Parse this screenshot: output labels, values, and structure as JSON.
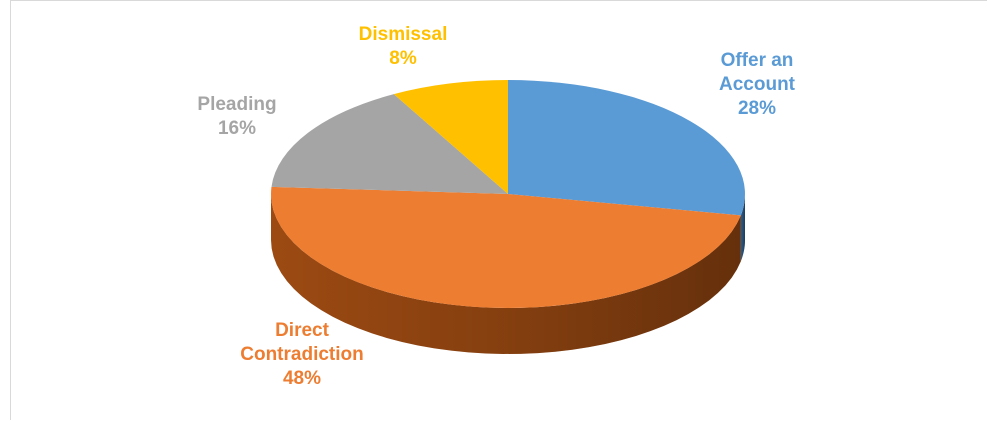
{
  "chart_data": {
    "type": "pie",
    "title": "",
    "start_angle_deg": 0,
    "direction": "clockwise",
    "slices": [
      {
        "label_lines": [
          "Offer an",
          "Account"
        ],
        "value": 28,
        "value_label": "28%",
        "color": "#5b9bd5",
        "side_color": "#2e5c8a"
      },
      {
        "label_lines": [
          "Direct",
          "Contradiction"
        ],
        "value": 48,
        "value_label": "48%",
        "color": "#ed7d31",
        "side_color": "#9c4a12"
      },
      {
        "label_lines": [
          "Pleading"
        ],
        "value": 16,
        "value_label": "16%",
        "color": "#a5a5a5",
        "side_color": "#6e6e6e"
      },
      {
        "label_lines": [
          "Dismissal"
        ],
        "value": 8,
        "value_label": "8%",
        "color": "#ffc000",
        "side_color": "#b38600"
      }
    ]
  }
}
